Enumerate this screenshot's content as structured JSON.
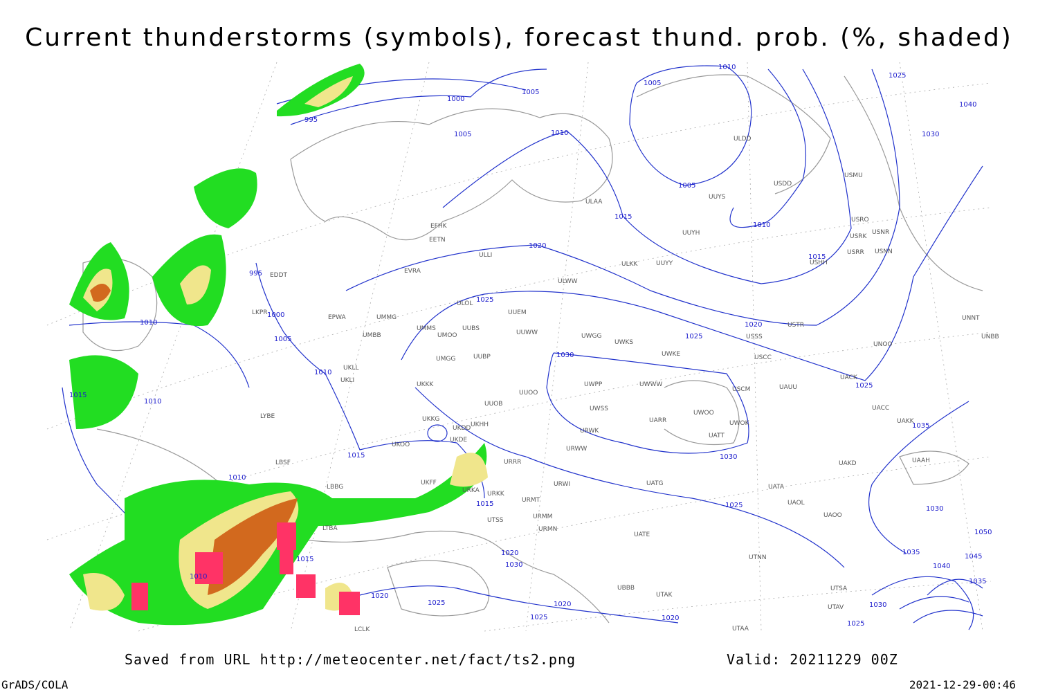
{
  "header": {
    "title": "Current thunderstorms (symbols), forecast thund. prob. (%, shaded)"
  },
  "footer": {
    "saved_from": "Saved from URL http://meteocenter.net/fact/ts2.png",
    "valid": "Valid: 20211229 00Z",
    "software": "GrADS/COLA",
    "timestamp": "2021-12-29-00:46"
  },
  "isobar_labels": [
    1010,
    1005,
    1025,
    1040,
    1030,
    1005,
    1000,
    1005,
    1010,
    995,
    1005,
    1015,
    1010,
    1020,
    1015,
    995,
    1025,
    1000,
    1010,
    1005,
    1020,
    1025,
    1030,
    1010,
    1015,
    1010,
    1025,
    1035,
    1015,
    1030,
    1010,
    1015,
    1025,
    1030,
    1015,
    1020,
    1030,
    1010,
    1020,
    1025,
    1020,
    1025,
    1020,
    1030,
    1025,
    1035,
    1045,
    1040,
    1035,
    1050
  ],
  "station_labels": [
    "EDDT",
    "LKPR",
    "EPWA",
    "UMMG",
    "EVRA",
    "ULLI",
    "EFHK",
    "EETN",
    "ULOL",
    "ULAA",
    "UUYS",
    "ULDD",
    "USDD",
    "USMU",
    "USRO",
    "USRK",
    "USNR",
    "USRR",
    "USNN",
    "USHH",
    "UUYH",
    "ULKK",
    "UUYY",
    "ULWW",
    "UUEM",
    "UUWW",
    "UWGG",
    "UWKS",
    "UWKE",
    "USSS",
    "USTR",
    "USCC",
    "UMMS",
    "UMOO",
    "UUBS",
    "UMBB",
    "UMGG",
    "UUBP",
    "UKLL",
    "UKLI",
    "UKKK",
    "UUOO",
    "UUOB",
    "UWPP",
    "UWWW",
    "USCM",
    "UAUU",
    "UACK",
    "UWSS",
    "UARR",
    "UWOO",
    "UWOK",
    "UATT",
    "UAKK",
    "UACC",
    "URWK",
    "URWW",
    "UKKG",
    "UKDD",
    "UKHH",
    "UKDE",
    "UKOO",
    "URRR",
    "LBSF",
    "LBBG",
    "UKFF",
    "URKA",
    "URKK",
    "URWI",
    "UATG",
    "UATA",
    "UAOL",
    "UAOO",
    "URMT",
    "URMM",
    "URMN",
    "UTSS",
    "UATE",
    "UTNN",
    "UTAK",
    "UBBB",
    "UTSA",
    "UTAV",
    "UTAA",
    "LYBE",
    "LTBA",
    "LCLK",
    "UAAH",
    "UAKD",
    "UNOO",
    "UNNT",
    "UNBB"
  ]
}
